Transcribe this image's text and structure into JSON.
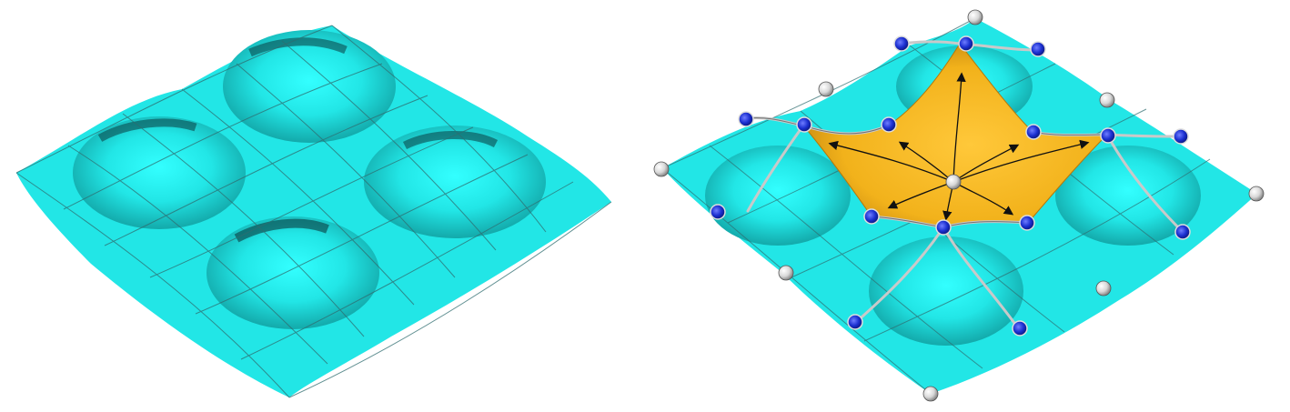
{
  "figure": {
    "panels": [
      {
        "name": "smooth-surface",
        "description_visible_text": ""
      },
      {
        "name": "edited-surface",
        "description_visible_text": ""
      }
    ],
    "colors": {
      "surface": "#22e6e6",
      "surface_shade": "#0d7f80",
      "surface_dark": "#0a3c40",
      "grid": "#2f6d70",
      "highlight_patch": "#f2b21b",
      "highlight_patch_dark": "#b5780a",
      "edge_curve": "#c9c9c9",
      "control_blue": "#1b2fd0",
      "control_white": "#e4e4e4",
      "arrow": "#111111"
    }
  }
}
